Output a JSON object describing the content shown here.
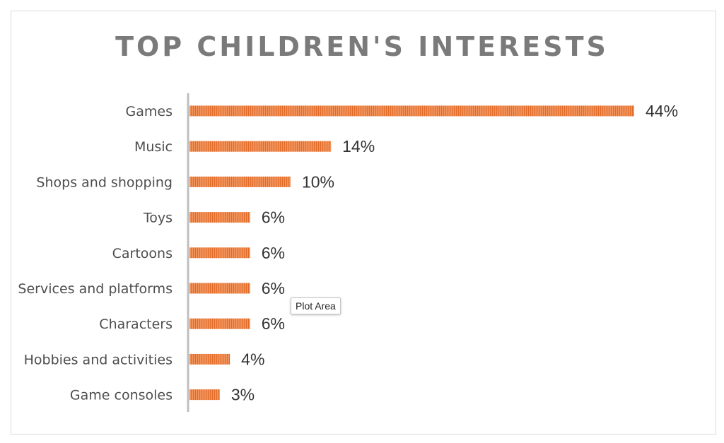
{
  "chart_data": {
    "type": "bar",
    "orientation": "horizontal",
    "title": "TOP CHILDREN'S INTERESTS",
    "categories": [
      "Games",
      "Music",
      "Shops and shopping",
      "Toys",
      "Cartoons",
      "Services and platforms",
      "Characters",
      "Hobbies and activities",
      "Game consoles"
    ],
    "values": [
      44,
      14,
      10,
      6,
      6,
      6,
      6,
      4,
      3
    ],
    "data_labels": [
      "44%",
      "14%",
      "10%",
      "6%",
      "6%",
      "6%",
      "6%",
      "4%",
      "3%"
    ],
    "value_unit": "%",
    "xlim": [
      0,
      44
    ],
    "grid": false,
    "legend": "none",
    "bar_color": "#f0915a",
    "bar_stripe_color": "#e06b28",
    "axis_color": "#bfbfbf",
    "title_color": "#7a7a7a"
  },
  "tooltip": {
    "text": "Plot Area"
  }
}
